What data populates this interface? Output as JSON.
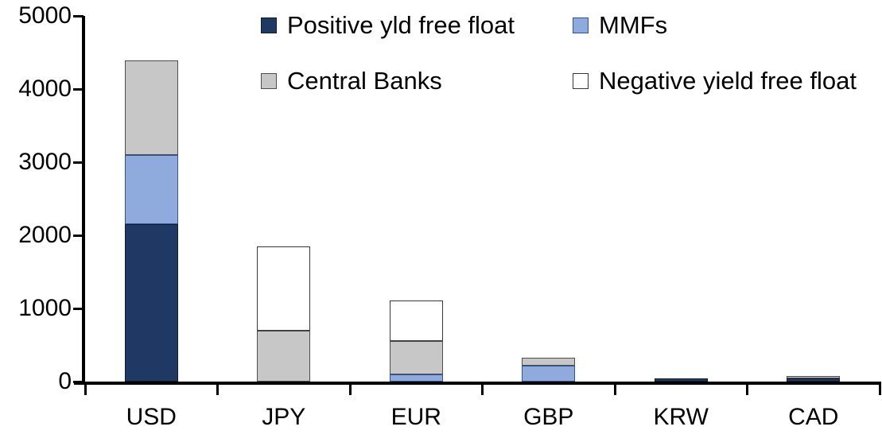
{
  "chart_data": {
    "type": "bar",
    "stacked": true,
    "title": "",
    "xlabel": "",
    "ylabel": "",
    "categories": [
      "USD",
      "JPY",
      "EUR",
      "GBP",
      "KRW",
      "CAD"
    ],
    "series": [
      {
        "name": "Positive yld free float",
        "color": "#1F3864",
        "border": "#101C33",
        "values": [
          2150,
          0,
          0,
          0,
          45,
          45
        ]
      },
      {
        "name": "MMFs",
        "color": "#8FAADC",
        "border": "#2F5597",
        "values": [
          950,
          0,
          100,
          220,
          0,
          0
        ]
      },
      {
        "name": "Central Banks",
        "color": "#C7C7C7",
        "border": "#4D4D4D",
        "values": [
          1290,
          700,
          450,
          110,
          0,
          35
        ]
      },
      {
        "name": "Negative yield free float",
        "color": "#FFFFFF",
        "border": "#383838",
        "values": [
          0,
          1150,
          560,
          0,
          0,
          0
        ]
      }
    ],
    "totals": [
      4390,
      1850,
      1110,
      330,
      45,
      80
    ],
    "ylim": [
      0,
      5000
    ],
    "yticks": [
      0,
      1000,
      2000,
      3000,
      4000,
      5000
    ],
    "grid": false,
    "legend_position": "top",
    "axis_color": "#000000",
    "background": "#FFFFFF"
  }
}
